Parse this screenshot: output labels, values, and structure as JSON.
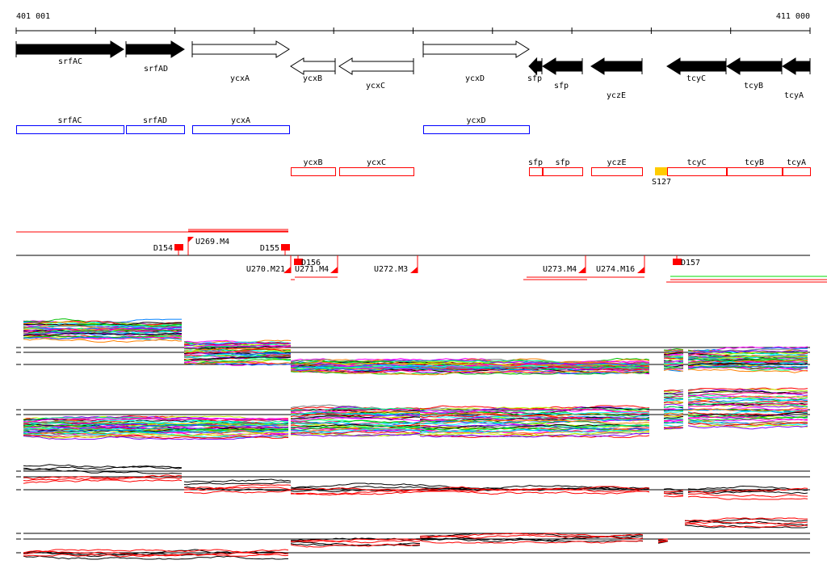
{
  "ruler": {
    "start_label": "401 001",
    "end_label": "411 000"
  },
  "genes": [
    {
      "name": "srfAC",
      "strand": "+",
      "style": "filled"
    },
    {
      "name": "srfAD",
      "strand": "+",
      "style": "filled"
    },
    {
      "name": "ycxA",
      "strand": "+",
      "style": "open"
    },
    {
      "name": "ycxB",
      "strand": "-",
      "style": "open"
    },
    {
      "name": "ycxC",
      "strand": "-",
      "style": "open"
    },
    {
      "name": "ycxD",
      "strand": "+",
      "style": "open"
    },
    {
      "name": "sfp",
      "strand": "-",
      "style": "filled"
    },
    {
      "name": "sfp",
      "strand": "-",
      "style": "filled"
    },
    {
      "name": "yczE",
      "strand": "-",
      "style": "filled"
    },
    {
      "name": "tcyC",
      "strand": "-",
      "style": "filled"
    },
    {
      "name": "tcyB",
      "strand": "-",
      "style": "filled"
    },
    {
      "name": "tcyA",
      "strand": "-",
      "style": "filled"
    }
  ],
  "forward_boxes": [
    "srfAC",
    "srfAD",
    "ycxA",
    "ycxD"
  ],
  "reverse_boxes": [
    "ycxB",
    "ycxC",
    "sfp",
    "sfp",
    "yczE",
    "tcyC",
    "tcyB",
    "tcyA"
  ],
  "special_feature": {
    "label": "S127",
    "color": "#ffcc00"
  },
  "regulatory_features": [
    "D154",
    "U269.M4",
    "D155",
    "D156",
    "U270.M21",
    "U271.M4",
    "U272.M3",
    "U273.M4",
    "U274.M16",
    "D157"
  ],
  "colors": {
    "forward_box": "#0000ff",
    "reverse_box": "#ff0000",
    "feature": "#ff0000",
    "green_line": "#00dd00"
  },
  "signal_colors": [
    "#ff00ff",
    "#00c000",
    "#0080ff",
    "#ff8000",
    "#00ffff",
    "#808080",
    "#ff0000",
    "#c0ff00",
    "#8000ff",
    "#000000",
    "#00ff80",
    "#ff0080"
  ]
}
